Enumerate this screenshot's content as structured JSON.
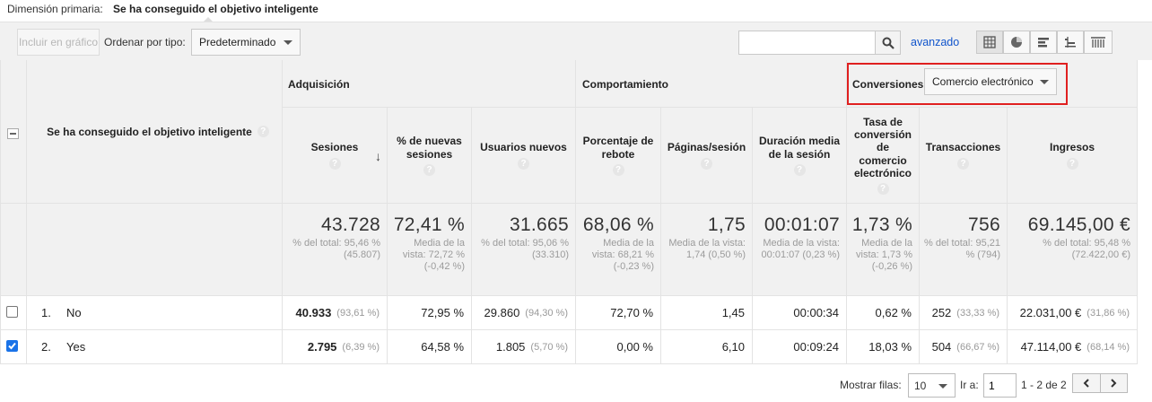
{
  "primary_dimension": {
    "label": "Dimensión primaria:",
    "value": "Se ha conseguido el objetivo inteligente"
  },
  "toolbar": {
    "include_in_chart": "Incluir en gráfico",
    "sort_label": "Ordenar por tipo:",
    "sort_value": "Predeterminado",
    "search_placeholder": "",
    "advanced": "avanzado",
    "view_icons": [
      "table-view-icon",
      "pie-view-icon",
      "bar-view-icon",
      "comparison-view-icon",
      "pivot-view-icon"
    ]
  },
  "table": {
    "dimension_header": "Se ha conseguido el objetivo inteligente",
    "sections": {
      "acquisition": "Adquisición",
      "behavior": "Comportamiento",
      "conversions": "Conversiones",
      "conversions_select": "Comercio electrónico"
    },
    "columns": [
      "Sesiones",
      "% de nuevas sesiones",
      "Usuarios nuevos",
      "Porcentaje de rebote",
      "Páginas/sesión",
      "Duración media de la sesión",
      "Tasa de conversión de comercio electrónico",
      "Transacciones",
      "Ingresos"
    ],
    "totals": [
      {
        "value": "43.728",
        "sub": "% del total: 95,46 % (45.807)"
      },
      {
        "value": "72,41 %",
        "sub": "Media de la vista: 72,72 % (-0,42 %)"
      },
      {
        "value": "31.665",
        "sub": "% del total: 95,06 % (33.310)"
      },
      {
        "value": "68,06 %",
        "sub": "Media de la vista: 68,21 % (-0,23 %)"
      },
      {
        "value": "1,75",
        "sub": "Media de la vista: 1,74 (0,50 %)"
      },
      {
        "value": "00:01:07",
        "sub": "Media de la vista: 00:01:07 (0,23 %)"
      },
      {
        "value": "1,73 %",
        "sub": "Media de la vista: 1,73 % (-0,26 %)"
      },
      {
        "value": "756",
        "sub": "% del total: 95,21 % (794)"
      },
      {
        "value": "69.145,00 €",
        "sub": "% del total: 95,48 % (72.422,00 €)"
      }
    ],
    "rows": [
      {
        "index": "1.",
        "name": "No",
        "checked": false,
        "cells": [
          {
            "v": "40.933",
            "p": "(93,61 %)"
          },
          {
            "v": "72,95 %"
          },
          {
            "v": "29.860",
            "p": "(94,30 %)"
          },
          {
            "v": "72,70 %"
          },
          {
            "v": "1,45"
          },
          {
            "v": "00:00:34"
          },
          {
            "v": "0,62 %"
          },
          {
            "v": "252",
            "p": "(33,33 %)"
          },
          {
            "v": "22.031,00 €",
            "p": "(31,86 %)"
          }
        ]
      },
      {
        "index": "2.",
        "name": "Yes",
        "checked": true,
        "cells": [
          {
            "v": "2.795",
            "p": "(6,39 %)"
          },
          {
            "v": "64,58 %"
          },
          {
            "v": "1.805",
            "p": "(5,70 %)"
          },
          {
            "v": "0,00 %"
          },
          {
            "v": "6,10"
          },
          {
            "v": "00:09:24"
          },
          {
            "v": "18,03 %"
          },
          {
            "v": "504",
            "p": "(66,67 %)"
          },
          {
            "v": "47.114,00 €",
            "p": "(68,14 %)"
          }
        ]
      }
    ]
  },
  "pagination": {
    "show_rows_label": "Mostrar filas:",
    "show_rows_value": "10",
    "goto_label": "Ir a:",
    "goto_value": "1",
    "range": "1 - 2 de 2"
  },
  "colors": {
    "accent_link": "#1155cc",
    "highlight_box": "#e02020",
    "checkbox_on": "#1a73e8"
  }
}
